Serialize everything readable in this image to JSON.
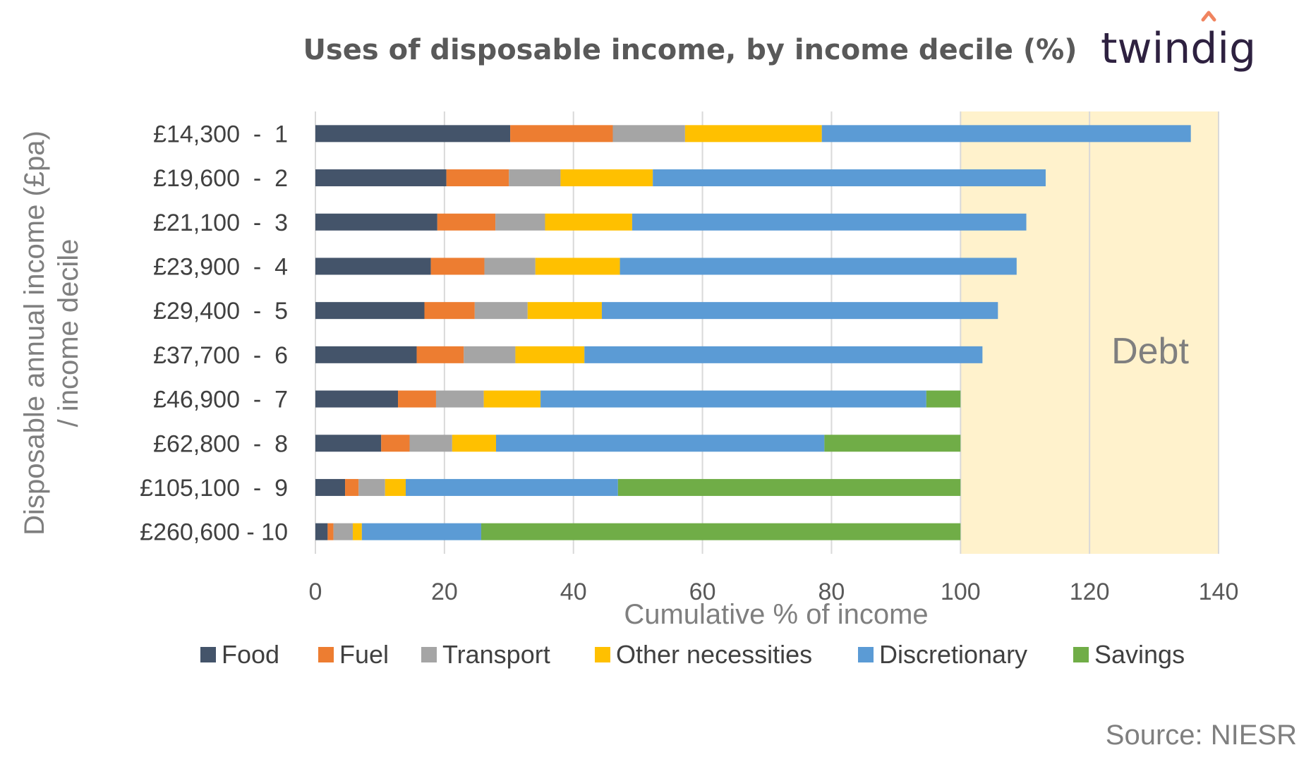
{
  "brand": {
    "text": "twindig",
    "accent_color": "#f0845f"
  },
  "source": "Source: NIESR",
  "chart_data": {
    "type": "bar",
    "orientation": "horizontal",
    "stacked": true,
    "title": "Uses of disposable income, by income decile (%)",
    "xlabel": "Cumulative % of income",
    "ylabel": "Disposable annual income (£pa) / income decile",
    "ylabel_lines": [
      "Disposable annual income (£pa)",
      "/ income decile"
    ],
    "xlim": [
      0,
      140
    ],
    "xticks": [
      "0",
      "20",
      "40",
      "60",
      "80",
      "100",
      "120",
      "140"
    ],
    "grid": true,
    "legend_position": "bottom",
    "categories": [
      "£14,300  -  1",
      "£19,600  -  2",
      "£21,100  -  3",
      "£23,900  -  4",
      "£29,400  -  5",
      "£37,700  -  6",
      "£46,900  -  7",
      "£62,800  -  8",
      "£105,100  -  9",
      "£260,600 - 10"
    ],
    "series": [
      {
        "name": "Food",
        "color": "#44546a",
        "values": [
          30.2,
          20.3,
          18.9,
          17.9,
          16.9,
          15.7,
          12.8,
          10.2,
          4.6,
          1.9
        ]
      },
      {
        "name": "Fuel",
        "color": "#ed7d31",
        "values": [
          15.9,
          9.7,
          9.0,
          8.3,
          7.8,
          7.3,
          5.9,
          4.4,
          2.1,
          0.9
        ]
      },
      {
        "name": "Transport",
        "color": "#a5a5a5",
        "values": [
          11.2,
          8.0,
          7.7,
          7.9,
          8.2,
          8.0,
          7.4,
          6.6,
          4.1,
          3.0
        ]
      },
      {
        "name": "Other necessities",
        "color": "#ffc000",
        "values": [
          21.2,
          14.3,
          13.5,
          13.1,
          11.5,
          10.7,
          8.8,
          6.8,
          3.2,
          1.4
        ]
      },
      {
        "name": "Discretionary",
        "color": "#5b9bd5",
        "values": [
          57.2,
          60.9,
          61.1,
          61.5,
          61.4,
          61.7,
          59.8,
          50.9,
          32.9,
          18.5
        ]
      },
      {
        "name": "Savings",
        "color": "#70ad47",
        "values": [
          0,
          0,
          0,
          0,
          0,
          0,
          5.3,
          21.1,
          53.1,
          74.3
        ]
      }
    ],
    "annotation": {
      "text": "Debt",
      "range": [
        100,
        140
      ],
      "color": "#fff2cc"
    }
  }
}
